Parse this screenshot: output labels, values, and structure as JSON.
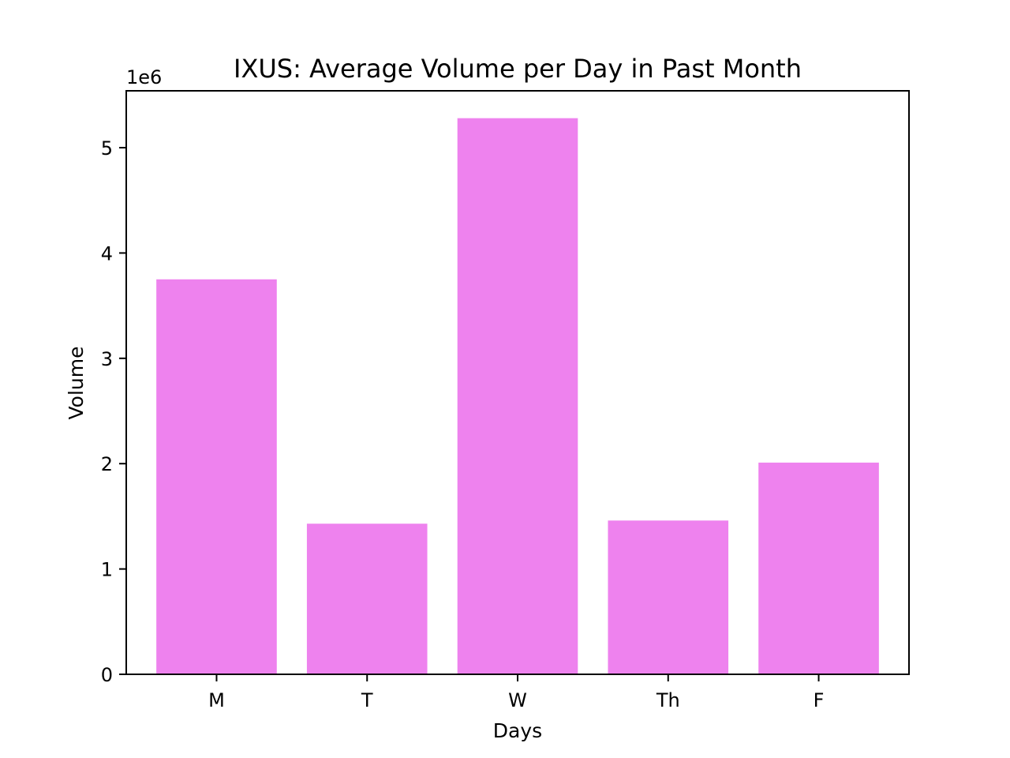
{
  "chart_data": {
    "type": "bar",
    "title": "IXUS: Average Volume per Day in Past Month",
    "xlabel": "Days",
    "ylabel": "Volume",
    "scale_label": "1e6",
    "categories": [
      "M",
      "T",
      "W",
      "Th",
      "F"
    ],
    "values": [
      3750000,
      1430000,
      5280000,
      1460000,
      2010000
    ],
    "ylim": [
      0,
      5540000
    ],
    "yticks": [
      0,
      1000000,
      2000000,
      3000000,
      4000000,
      5000000
    ],
    "ytick_labels": [
      "0",
      "1",
      "2",
      "3",
      "4",
      "5"
    ],
    "bar_color": "#ee82ee",
    "grid": false,
    "legend": "none"
  }
}
